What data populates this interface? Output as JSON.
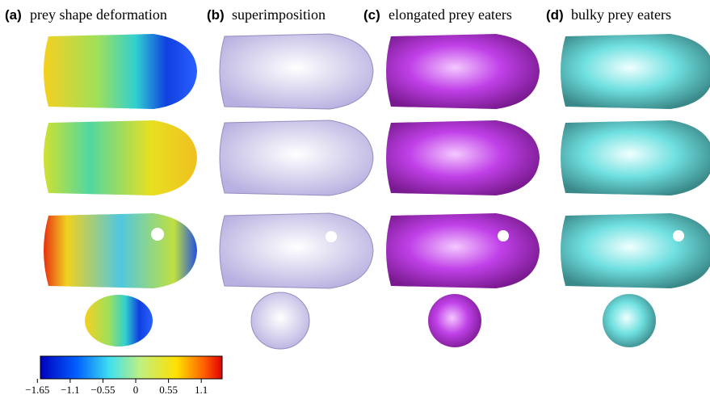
{
  "panels": [
    {
      "label": "(a)",
      "title": "prey shape deformation"
    },
    {
      "label": "(b)",
      "title": "superimposition"
    },
    {
      "label": "(c)",
      "title": "elongated prey eaters"
    },
    {
      "label": "(d)",
      "title": "bulky prey eaters"
    }
  ],
  "colorbar": {
    "lim": [
      -1.6,
      1.45
    ],
    "ticks": [
      {
        "value": -1.65,
        "label": "−1.65"
      },
      {
        "value": -1.1,
        "label": "−1.1"
      },
      {
        "value": -0.55,
        "label": "−0.55"
      },
      0,
      0.55,
      1.1
    ]
  }
}
